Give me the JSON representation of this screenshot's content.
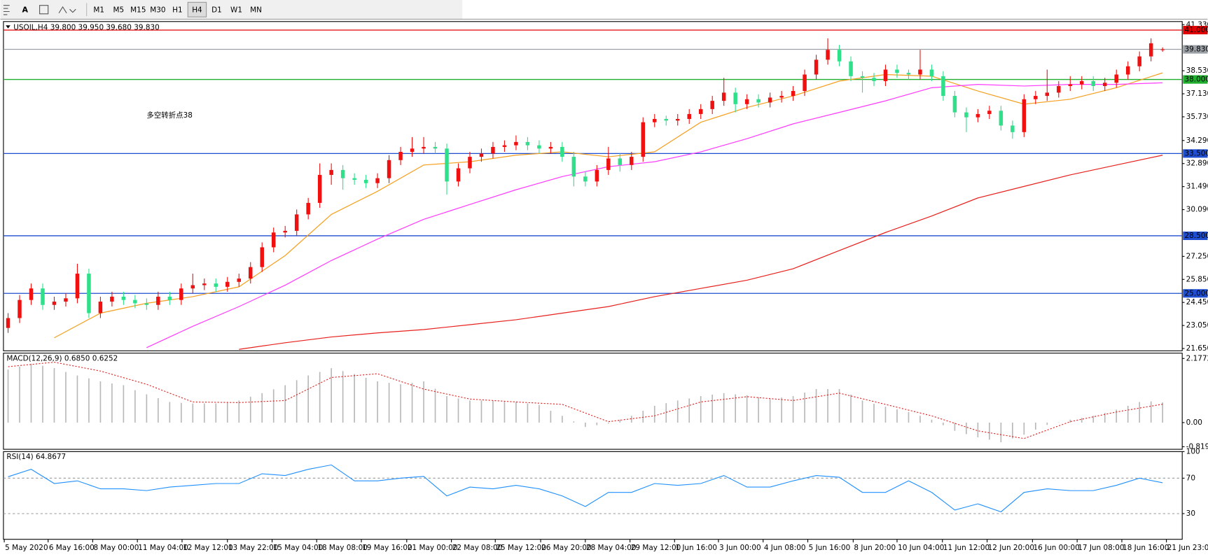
{
  "toolbar": {
    "text_tool": "A",
    "timeframes": [
      "M1",
      "M5",
      "M15",
      "M30",
      "H1",
      "H4",
      "D1",
      "W1",
      "MN"
    ]
  },
  "chart_data": [
    {
      "type": "candlestick",
      "title": "USOIL,H4  39.800 39.950 39.680 39.830",
      "annotation": "多空转折点38",
      "up_color": "#f01010",
      "down_color": "#2ee08a",
      "xlim": [
        -0.4,
        101.7
      ],
      "ylim": [
        21.51,
        41.52
      ],
      "yticks": [
        {
          "value": 41.33,
          "label": "41.330"
        },
        {
          "value": 38.53,
          "label": "38.530"
        },
        {
          "value": 37.13,
          "label": "37.130"
        },
        {
          "value": 35.73,
          "label": "35.730"
        },
        {
          "value": 34.29,
          "label": "34.290"
        },
        {
          "value": 32.89,
          "label": "32.890"
        },
        {
          "value": 31.49,
          "label": "31.490"
        },
        {
          "value": 30.09,
          "label": "30.090"
        },
        {
          "value": 27.25,
          "label": "27.250"
        },
        {
          "value": 25.85,
          "label": "25.850"
        },
        {
          "value": 24.45,
          "label": "24.450"
        },
        {
          "value": 23.05,
          "label": "23.050"
        },
        {
          "value": 21.65,
          "label": "21.650"
        }
      ],
      "xticks": [
        {
          "value": -0.33,
          "label": "5 May 2020"
        },
        {
          "value": 3.47,
          "label": "6 May 16:00"
        },
        {
          "value": 7.33,
          "label": "8 May 00:00"
        },
        {
          "value": 11.2,
          "label": "11 May 04:00"
        },
        {
          "value": 15.07,
          "label": "12 May 12:00"
        },
        {
          "value": 19,
          "label": "13 May 22:00"
        },
        {
          "value": 22.87,
          "label": "15 May 04:00"
        },
        {
          "value": 26.73,
          "label": "18 May 08:00"
        },
        {
          "value": 30.6,
          "label": "19 May 16:00"
        },
        {
          "value": 34.53,
          "label": "21 May 00:00"
        },
        {
          "value": 38.4,
          "label": "22 May 08:00"
        },
        {
          "value": 42.2,
          "label": "25 May 12:00"
        },
        {
          "value": 46.13,
          "label": "26 May 20:00"
        },
        {
          "value": 50,
          "label": "28 May 04:00"
        },
        {
          "value": 53.87,
          "label": "29 May 12:00"
        },
        {
          "value": 57.73,
          "label": "1 Jun 16:00"
        },
        {
          "value": 61.53,
          "label": "3 Jun 00:00"
        },
        {
          "value": 65.4,
          "label": "4 Jun 08:00"
        },
        {
          "value": 69.27,
          "label": "5 Jun 16:00"
        },
        {
          "value": 73.2,
          "label": "8 Jun 20:00"
        },
        {
          "value": 77,
          "label": "10 Jun 04:00"
        },
        {
          "value": 80.93,
          "label": "11 Jun 12:00"
        },
        {
          "value": 84.8,
          "label": "12 Jun 20:00"
        },
        {
          "value": 88.73,
          "label": "16 Jun 00:00"
        },
        {
          "value": 92.6,
          "label": "17 Jun 08:00"
        },
        {
          "value": 96.47,
          "label": "18 Jun 16:00"
        },
        {
          "value": 100.33,
          "label": "21 Jun 23:00"
        }
      ],
      "levels": [
        {
          "value": 41,
          "label": "41.000",
          "color": "#e00000"
        },
        {
          "value": 39.83,
          "label": "39.830",
          "color": "#9aa0a6"
        },
        {
          "value": 38,
          "label": "38.000",
          "color": "#1fae2e"
        },
        {
          "value": 33.5,
          "label": "33.500",
          "color": "#1f4fd0"
        },
        {
          "value": 28.5,
          "label": "28.500",
          "color": "#1f4fd0"
        },
        {
          "value": 25,
          "label": "25.000",
          "color": "#1f4fd0"
        }
      ],
      "open": [
        22.9,
        23.5,
        24.6,
        25.3,
        24.3,
        24.5,
        24.7,
        26.2,
        23.8,
        24.5,
        24.8,
        24.6,
        24.4,
        24.3,
        24.8,
        24.6,
        25.3,
        25.5,
        25.6,
        25.4,
        25.7,
        25.9,
        26.6,
        27.8,
        28.7,
        28.8,
        29.8,
        30.5,
        32.2,
        32.5,
        32.0,
        31.9,
        31.7,
        32.0,
        33.1,
        33.6,
        33.8,
        33.9,
        33.8,
        31.8,
        32.6,
        33.3,
        33.5,
        33.9,
        34.0,
        34.2,
        34.0,
        33.8,
        33.9,
        33.3,
        32.1,
        31.8,
        32.5,
        33.2,
        32.8,
        33.3,
        35.4,
        35.6,
        35.5,
        35.6,
        35.9,
        36.2,
        36.7,
        37.2,
        36.5,
        36.8,
        36.6,
        36.9,
        37.0,
        37.3,
        38.3,
        39.2,
        39.8,
        39.1,
        38.2,
        38.1,
        37.9,
        38.6,
        38.4,
        38.3,
        38.6,
        38.2,
        37.0,
        36.0,
        35.7,
        35.9,
        36.1,
        35.2,
        34.8,
        36.8,
        37.0,
        37.2,
        37.6,
        37.7,
        37.9,
        37.6,
        37.8,
        38.3,
        38.8,
        39.4,
        39.8
      ],
      "high": [
        23.8,
        24.9,
        25.6,
        25.6,
        24.8,
        25.0,
        26.8,
        26.5,
        24.8,
        25.1,
        25.1,
        24.9,
        24.7,
        25.1,
        25.1,
        25.6,
        26.2,
        25.9,
        25.9,
        26.0,
        26.2,
        26.9,
        28.1,
        29.0,
        29.1,
        30.1,
        30.8,
        32.9,
        32.9,
        32.8,
        32.3,
        32.2,
        32.3,
        33.4,
        33.9,
        34.5,
        34.5,
        34.2,
        34.1,
        32.9,
        33.6,
        33.8,
        34.2,
        34.3,
        34.6,
        34.5,
        34.3,
        34.2,
        34.2,
        33.6,
        32.4,
        32.8,
        33.9,
        33.5,
        33.6,
        35.7,
        35.9,
        35.8,
        35.9,
        36.2,
        36.5,
        37.0,
        38.1,
        37.5,
        37.1,
        37.1,
        37.2,
        37.3,
        37.6,
        38.6,
        39.5,
        40.5,
        40.1,
        39.4,
        38.5,
        38.4,
        38.9,
        38.9,
        38.6,
        39.8,
        38.9,
        38.5,
        37.3,
        36.3,
        36.2,
        36.4,
        36.4,
        35.5,
        37.1,
        37.3,
        38.6,
        37.9,
        38.2,
        38.2,
        38.2,
        38.1,
        38.6,
        39.1,
        39.7,
        40.5,
        39.95
      ],
      "low": [
        22.6,
        23.2,
        24.3,
        24.0,
        24.0,
        24.2,
        24.4,
        23.5,
        23.5,
        24.2,
        24.3,
        24.1,
        24.0,
        24.0,
        24.3,
        24.3,
        25.0,
        25.2,
        25.1,
        25.1,
        25.4,
        25.6,
        26.3,
        27.5,
        28.4,
        28.5,
        29.5,
        30.2,
        31.6,
        31.3,
        31.6,
        31.4,
        31.4,
        31.7,
        32.8,
        33.3,
        33.5,
        33.5,
        31.0,
        31.5,
        32.3,
        33.0,
        33.2,
        33.6,
        33.7,
        33.7,
        33.5,
        33.5,
        33.0,
        31.5,
        31.5,
        31.5,
        32.2,
        32.4,
        32.5,
        33.0,
        35.1,
        35.2,
        35.2,
        35.3,
        35.6,
        35.9,
        36.4,
        36.0,
        36.2,
        36.3,
        36.3,
        36.6,
        36.7,
        37.0,
        38.0,
        38.9,
        38.8,
        37.9,
        37.2,
        37.6,
        37.6,
        38.1,
        38.0,
        38.0,
        37.9,
        36.7,
        35.7,
        34.8,
        35.4,
        35.6,
        34.9,
        34.4,
        34.5,
        36.5,
        36.7,
        36.9,
        37.3,
        37.4,
        37.3,
        37.3,
        37.5,
        38.0,
        38.5,
        39.1,
        39.68
      ],
      "close": [
        23.5,
        24.6,
        25.3,
        24.3,
        24.5,
        24.7,
        26.2,
        23.8,
        24.5,
        24.8,
        24.6,
        24.4,
        24.3,
        24.8,
        24.6,
        25.3,
        25.5,
        25.6,
        25.4,
        25.7,
        25.9,
        26.6,
        27.8,
        28.7,
        28.8,
        29.8,
        30.5,
        32.2,
        32.5,
        32.0,
        31.9,
        31.7,
        32.0,
        33.1,
        33.6,
        33.8,
        33.9,
        33.8,
        31.8,
        32.6,
        33.3,
        33.5,
        33.9,
        34.0,
        34.2,
        34.0,
        33.8,
        33.9,
        33.3,
        32.1,
        31.8,
        32.5,
        33.2,
        32.8,
        33.3,
        35.4,
        35.6,
        35.5,
        35.6,
        35.9,
        36.2,
        36.7,
        37.2,
        36.5,
        36.8,
        36.6,
        36.9,
        37.0,
        37.3,
        38.3,
        39.2,
        39.8,
        39.1,
        38.2,
        38.1,
        37.9,
        38.6,
        38.4,
        38.3,
        38.6,
        38.2,
        37.0,
        36.0,
        35.7,
        35.9,
        36.1,
        35.2,
        34.8,
        36.8,
        37.0,
        37.2,
        37.6,
        37.7,
        37.9,
        37.6,
        37.8,
        38.3,
        38.8,
        39.4,
        40.2,
        39.83
      ],
      "lines": [
        {
          "color": "#f5a020",
          "x": [
            0,
            4,
            8,
            12,
            16,
            20,
            24,
            28,
            32,
            36,
            40,
            44,
            48,
            52,
            56,
            60,
            64,
            68,
            72,
            76,
            80,
            84,
            88,
            92,
            96,
            100
          ],
          "values": [
            null,
            22.3,
            23.8,
            24.4,
            24.8,
            25.4,
            27.3,
            29.8,
            31.2,
            32.8,
            33.0,
            33.4,
            33.6,
            33.3,
            33.6,
            35.4,
            36.3,
            37.0,
            37.9,
            38.3,
            38.2,
            37.3,
            36.5,
            36.8,
            37.5,
            38.4
          ]
        },
        {
          "color": "#ff3cff",
          "x": [
            0,
            4,
            8,
            12,
            16,
            20,
            24,
            28,
            32,
            36,
            40,
            44,
            48,
            52,
            56,
            60,
            64,
            68,
            72,
            76,
            80,
            84,
            88,
            92,
            96,
            100
          ],
          "values": [
            null,
            null,
            null,
            21.7,
            23.0,
            24.2,
            25.5,
            27.0,
            28.3,
            29.5,
            30.4,
            31.3,
            32.1,
            32.7,
            33.0,
            33.6,
            34.4,
            35.3,
            36.0,
            36.7,
            37.5,
            37.7,
            37.6,
            37.7,
            37.7,
            37.8
          ]
        },
        {
          "color": "#e8201c",
          "x": [
            0,
            4,
            8,
            12,
            16,
            20,
            24,
            28,
            32,
            36,
            40,
            44,
            48,
            52,
            56,
            60,
            64,
            68,
            72,
            76,
            80,
            84,
            88,
            92,
            96,
            100
          ],
          "values": [
            null,
            null,
            null,
            null,
            null,
            21.6,
            22.0,
            22.35,
            22.6,
            22.8,
            23.1,
            23.4,
            23.8,
            24.2,
            24.8,
            25.3,
            25.8,
            26.5,
            27.6,
            28.7,
            29.7,
            30.8,
            31.5,
            32.2,
            32.8,
            33.4
          ]
        }
      ]
    },
    {
      "type": "macd",
      "title": "MACD(12,26,9) 0.6850 0.6252",
      "color": "#b8b8b8",
      "signal_color": "#e02020",
      "ylim": [
        -0.907,
        2.359
      ],
      "yticks": [
        2.1772,
        {
          "value": 0,
          "label": "0.00"
        },
        -0.819
      ],
      "values": [
        1.8,
        1.9,
        2.0,
        1.93,
        1.85,
        1.72,
        1.6,
        1.5,
        1.4,
        1.33,
        1.27,
        1.1,
        0.96,
        0.83,
        0.7,
        0.67,
        0.65,
        0.65,
        0.65,
        0.7,
        0.75,
        0.88,
        1.0,
        1.13,
        1.27,
        1.44,
        1.6,
        1.72,
        1.85,
        1.75,
        1.65,
        1.52,
        1.4,
        1.35,
        1.3,
        1.35,
        1.4,
        1.15,
        0.9,
        0.82,
        0.75,
        0.75,
        0.75,
        0.72,
        0.7,
        0.65,
        0.6,
        0.4,
        0.23,
        0.04,
        -0.15,
        -0.09,
        -0.03,
        0.1,
        0.23,
        0.4,
        0.57,
        0.66,
        0.75,
        0.82,
        0.9,
        0.95,
        1.0,
        0.96,
        0.93,
        0.86,
        0.8,
        0.85,
        0.9,
        1.02,
        1.14,
        1.14,
        1.14,
        0.95,
        0.75,
        0.64,
        0.54,
        0.45,
        0.36,
        0.23,
        0.1,
        -0.09,
        -0.28,
        -0.39,
        -0.5,
        -0.58,
        -0.67,
        -0.54,
        -0.41,
        -0.24,
        -0.08,
        0.01,
        0.1,
        0.16,
        0.23,
        0.33,
        0.44,
        0.57,
        0.7,
        0.72,
        0.685
      ],
      "signal": {
        "x": [
          0,
          4,
          8,
          12,
          16,
          20,
          24,
          28,
          32,
          36,
          40,
          44,
          48,
          52,
          56,
          60,
          64,
          68,
          72,
          76,
          80,
          84,
          88,
          92,
          96,
          100
        ],
        "values": [
          1.9,
          2.05,
          1.75,
          1.3,
          0.7,
          0.68,
          0.75,
          1.53,
          1.66,
          1.14,
          0.8,
          0.7,
          0.62,
          0.03,
          0.23,
          0.7,
          0.88,
          0.75,
          1.0,
          0.62,
          0.23,
          -0.28,
          -0.54,
          0.03,
          0.36,
          0.6252
        ]
      }
    },
    {
      "type": "line",
      "title": "RSI(14) 64.8677",
      "color": "#1e8fff",
      "ylim": [
        1,
        100
      ],
      "yticks": [
        100,
        70,
        30
      ],
      "x": [
        0,
        2,
        4,
        6,
        8,
        10,
        12,
        14,
        16,
        18,
        20,
        22,
        24,
        26,
        28,
        30,
        32,
        34,
        36,
        38,
        40,
        42,
        44,
        46,
        48,
        50,
        52,
        54,
        56,
        58,
        60,
        62,
        64,
        66,
        68,
        70,
        72,
        74,
        76,
        78,
        80,
        82,
        84,
        86,
        88,
        90,
        92,
        94,
        96,
        98,
        100
      ],
      "values": [
        71.6,
        80,
        64,
        67,
        58,
        58,
        56,
        60,
        62,
        64,
        64,
        75,
        73,
        80,
        85,
        67,
        67,
        70,
        72,
        50,
        60,
        58,
        62,
        58,
        50,
        38,
        54,
        54,
        64,
        62,
        64,
        73,
        60,
        60,
        67,
        73,
        71,
        54,
        54,
        67,
        54,
        34,
        41,
        32,
        54,
        58,
        56,
        56,
        62,
        70,
        64.8677
      ]
    }
  ]
}
